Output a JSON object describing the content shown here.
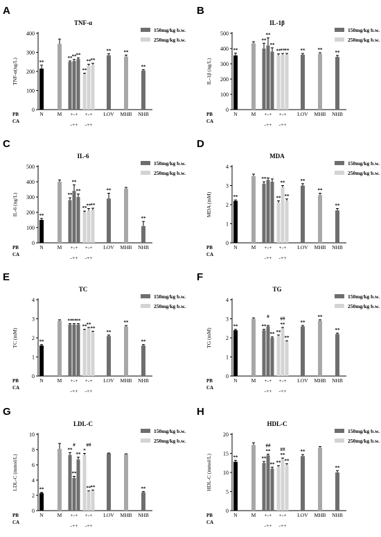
{
  "colors": {
    "black": "#000000",
    "dark": "#6e6e6e",
    "light": "#d4d4d4",
    "M": "#a8a8a8",
    "LOV": "#6e6e6e",
    "MHB": "#a8a8a8",
    "NHB": "#6e6e6e"
  },
  "legend": [
    "150mg/kg b.w.",
    "250mg/kg b.w."
  ],
  "row_labels": [
    "PB",
    "CA"
  ],
  "group_labels": [
    "N",
    "M",
    "LOV",
    "MHB",
    "NHB"
  ],
  "combo_top": "+-+",
  "combo_bottom": "-++",
  "chart_data": [
    {
      "letter": "A",
      "title": "TNF-α",
      "ylabel": "TNF-α(ng/L)",
      "type": "bar",
      "ylim": [
        0,
        400
      ],
      "yticks": [
        0,
        100,
        200,
        300,
        400
      ],
      "categories": [
        "N",
        "M",
        "PB 150",
        "CA 150",
        "PB+CA 150",
        "PB 250",
        "CA 250",
        "PB+CA 250",
        "LOV",
        "MHB",
        "NHB"
      ],
      "values": [
        215,
        345,
        250,
        255,
        265,
        185,
        230,
        235,
        285,
        278,
        205
      ],
      "errors": [
        18,
        25,
        5,
        8,
        6,
        6,
        8,
        8,
        8,
        8,
        5
      ],
      "labels": [
        "**",
        "",
        "**",
        "**",
        "**",
        "**",
        "**",
        "**",
        "**",
        "**",
        "**"
      ]
    },
    {
      "letter": "B",
      "title": "IL-1β",
      "ylabel": "IL-1β (ng/L)",
      "type": "bar",
      "ylim": [
        0,
        500
      ],
      "yticks": [
        0,
        100,
        200,
        300,
        400,
        500
      ],
      "categories": [
        "N",
        "M",
        "PB 150",
        "CA 150",
        "PB+CA 150",
        "PB 250",
        "CA 250",
        "PB+CA 250",
        "LOV",
        "MHB",
        "NHB"
      ],
      "values": [
        355,
        435,
        400,
        420,
        380,
        355,
        360,
        360,
        360,
        365,
        345
      ],
      "errors": [
        15,
        10,
        35,
        50,
        25,
        10,
        8,
        8,
        8,
        8,
        10
      ],
      "labels": [
        "**",
        "",
        "**",
        "**",
        "**",
        "**",
        "**",
        "**",
        "**",
        "**",
        "**"
      ]
    },
    {
      "letter": "C",
      "title": "IL-6",
      "ylabel": "IL-6 (ng/L)",
      "type": "bar",
      "ylim": [
        0,
        500
      ],
      "yticks": [
        0,
        100,
        200,
        300,
        400,
        500
      ],
      "categories": [
        "N",
        "M",
        "PB 150",
        "CA 150",
        "PB+CA 150",
        "PB 250",
        "CA 250",
        "PB+CA 250",
        "LOV",
        "MHB",
        "NHB"
      ],
      "values": [
        150,
        400,
        280,
        340,
        300,
        200,
        210,
        215,
        290,
        355,
        110
      ],
      "errors": [
        10,
        12,
        15,
        40,
        20,
        8,
        15,
        12,
        35,
        8,
        30
      ],
      "labels": [
        "**",
        "",
        "**",
        "**",
        "**",
        "**",
        "**",
        "**",
        "**",
        "",
        "**"
      ]
    },
    {
      "letter": "D",
      "title": "MDA",
      "ylabel": "MDA (mM)",
      "type": "bar",
      "ylim": [
        0,
        4
      ],
      "yticks": [
        0,
        1,
        2,
        3,
        4
      ],
      "categories": [
        "N",
        "M",
        "PB 150",
        "CA 150",
        "PB+CA 150",
        "PB 250",
        "CA 250",
        "PB+CA 250",
        "LOV",
        "MHB",
        "NHB"
      ],
      "values": [
        2.2,
        3.5,
        3.1,
        3.3,
        3.2,
        2.1,
        2.9,
        2.2,
        3.0,
        2.5,
        1.7
      ],
      "errors": [
        0.05,
        0.1,
        0.1,
        0.1,
        0.15,
        0.1,
        0.1,
        0.1,
        0.1,
        0.1,
        0.1
      ],
      "labels": [
        "**",
        "",
        "**",
        "",
        "",
        "**",
        "**",
        "**",
        "**",
        "**",
        "**"
      ]
    },
    {
      "letter": "E",
      "title": "TC",
      "ylabel": "TC (mM)",
      "type": "bar",
      "ylim": [
        0,
        4
      ],
      "yticks": [
        0,
        1,
        2,
        3,
        4
      ],
      "categories": [
        "N",
        "M",
        "PB 150",
        "CA 150",
        "PB+CA 150",
        "PB 250",
        "CA 250",
        "PB+CA 250",
        "LOV",
        "MHB",
        "NHB"
      ],
      "values": [
        1.6,
        2.9,
        2.7,
        2.7,
        2.7,
        2.4,
        2.5,
        2.3,
        2.1,
        2.6,
        1.6
      ],
      "errors": [
        0.05,
        0.05,
        0.05,
        0.05,
        0.05,
        0.05,
        0.05,
        0.05,
        0.05,
        0.05,
        0.05
      ],
      "labels": [
        "**",
        "",
        "**",
        "**",
        "**",
        "**",
        "**",
        "**",
        "**",
        "**",
        "**"
      ]
    },
    {
      "letter": "F",
      "title": "TG",
      "ylabel": "TG (mM)",
      "type": "bar",
      "ylim": [
        0,
        4
      ],
      "yticks": [
        0,
        1,
        2,
        3,
        4
      ],
      "categories": [
        "N",
        "M",
        "PB 150",
        "CA 150",
        "PB+CA 150",
        "PB 250",
        "CA 250",
        "PB+CA 250",
        "LOV",
        "MHB",
        "NHB"
      ],
      "values": [
        2.4,
        3.0,
        2.4,
        2.6,
        2.0,
        2.1,
        2.5,
        1.8,
        2.6,
        2.9,
        2.2
      ],
      "errors": [
        0.05,
        0.05,
        0.05,
        0.05,
        0.05,
        0.05,
        0.05,
        0.05,
        0.05,
        0.05,
        0.05
      ],
      "labels": [
        "**",
        "",
        "**",
        "",
        "**",
        "**",
        "**",
        "**",
        "**",
        "**",
        "**"
      ],
      "hash_labels": [
        "#",
        "##"
      ]
    },
    {
      "letter": "G",
      "title": "LDL-C",
      "ylabel": "LDL-C (mmol/L)",
      "type": "bar",
      "ylim": [
        0,
        10
      ],
      "yticks": [
        0,
        2,
        4,
        6,
        8,
        10
      ],
      "categories": [
        "N",
        "M",
        "PB 150",
        "CA 150",
        "PB+CA 150",
        "PB 250",
        "CA 250",
        "PB+CA 250",
        "LOV",
        "MHB",
        "NHB"
      ],
      "values": [
        2.3,
        8.1,
        7.3,
        4.3,
        6.7,
        7.3,
        2.5,
        2.6,
        7.5,
        7.4,
        2.4
      ],
      "errors": [
        0.1,
        0.7,
        0.3,
        0.2,
        0.3,
        0.2,
        0.1,
        0.1,
        0.05,
        0.05,
        0.1
      ],
      "labels": [
        "**",
        "",
        "**",
        "**",
        "**",
        "*",
        "**",
        "**",
        "",
        "",
        "**"
      ],
      "hash_labels": [
        "#",
        "##"
      ]
    },
    {
      "letter": "H",
      "title": "HDL-C",
      "ylabel": "HDL-C (mmol/L)",
      "type": "bar",
      "ylim": [
        0,
        20
      ],
      "yticks": [
        0,
        5,
        10,
        15,
        20
      ],
      "categories": [
        "N",
        "M",
        "PB 150",
        "CA 150",
        "PB+CA 150",
        "PB 250",
        "CA 250",
        "PB+CA 250",
        "LOV",
        "MHB",
        "NHB"
      ],
      "values": [
        12.8,
        17.2,
        12.5,
        14.5,
        11.0,
        11.5,
        13.5,
        12.0,
        14.3,
        16.5,
        10.0
      ],
      "errors": [
        0.4,
        0.6,
        0.4,
        0.3,
        0.4,
        0.3,
        0.3,
        0.3,
        0.4,
        0.3,
        0.5
      ],
      "labels": [
        "**",
        "",
        "**",
        "**",
        "**",
        "**",
        "**",
        "**",
        "**",
        "",
        "**"
      ],
      "hash_labels": [
        "##",
        "##"
      ]
    }
  ]
}
